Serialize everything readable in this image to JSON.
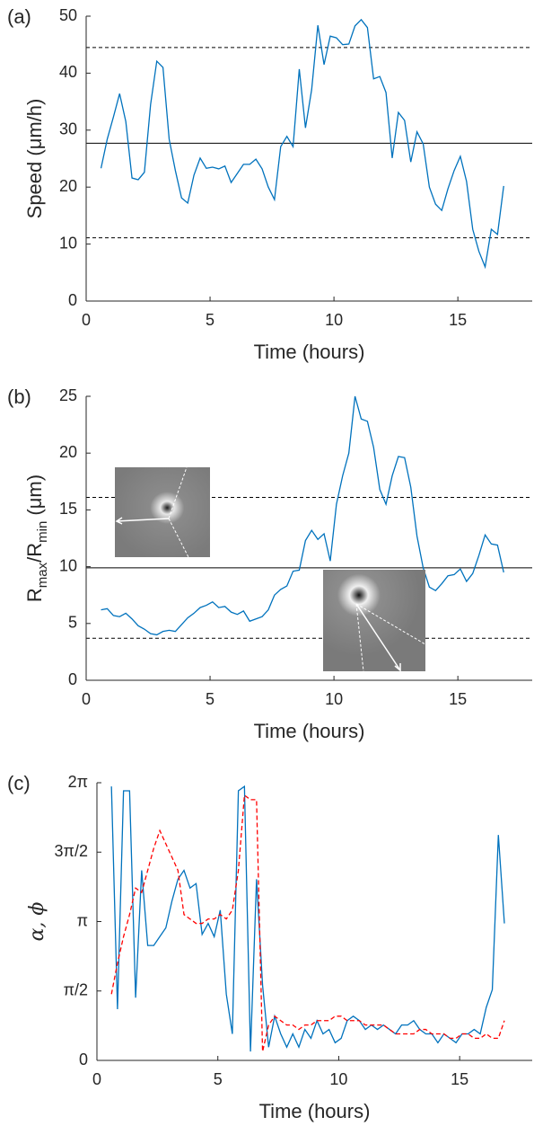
{
  "chart_data": [
    {
      "type": "line",
      "panel_label": "(a)",
      "xlabel": "Time (hours)",
      "ylabel": [
        {
          "text": "Speed (μm/h)"
        }
      ],
      "xlim": [
        0,
        18
      ],
      "xticks": [
        0,
        5,
        10,
        15
      ],
      "ylim": [
        0,
        50
      ],
      "yticks": [
        0,
        10,
        20,
        30,
        40,
        50
      ],
      "hlines": [
        {
          "value": 44.5,
          "style": "dashed"
        },
        {
          "value": 27.7,
          "style": "solid"
        },
        {
          "value": 11.1,
          "style": "dashed"
        }
      ],
      "x": [
        0.6,
        0.85,
        1.1,
        1.35,
        1.6,
        1.85,
        2.1,
        2.35,
        2.6,
        2.85,
        3.1,
        3.35,
        3.6,
        3.85,
        4.1,
        4.35,
        4.6,
        4.85,
        5.1,
        5.35,
        5.6,
        5.85,
        6.1,
        6.35,
        6.6,
        6.85,
        7.1,
        7.35,
        7.6,
        7.85,
        8.1,
        8.35,
        8.6,
        8.85,
        9.1,
        9.35,
        9.6,
        9.85,
        10.1,
        10.35,
        10.6,
        10.85,
        11.1,
        11.35,
        11.6,
        11.85,
        12.1,
        12.35,
        12.6,
        12.85,
        13.1,
        13.35,
        13.6,
        13.85,
        14.1,
        14.35,
        14.6,
        14.85,
        15.1,
        15.35,
        15.6,
        15.85,
        16.1,
        16.35,
        16.6,
        16.85
      ],
      "series": [
        {
          "color": "#0072bd",
          "dash": false,
          "values": [
            23.3,
            28.4,
            32.3,
            36.4,
            31.5,
            21.6,
            21.3,
            22.6,
            34.5,
            42.1,
            41.0,
            28.4,
            22.9,
            18.1,
            17.2,
            22.1,
            25.1,
            23.3,
            23.5,
            23.2,
            23.7,
            20.8,
            22.4,
            24.0,
            24.0,
            24.9,
            23.2,
            20.0,
            17.8,
            27.1,
            28.9,
            27.1,
            40.7,
            30.4,
            37.1,
            48.4,
            41.5,
            46.5,
            46.2,
            45.0,
            45.1,
            48.3,
            49.4,
            48.0,
            39.0,
            39.4,
            36.6,
            25.1,
            33.1,
            31.7,
            24.4,
            29.7,
            27.6,
            20.0,
            17.0,
            15.9,
            19.7,
            22.9,
            25.4,
            21.0,
            12.6,
            8.7,
            6.0,
            12.6,
            11.7,
            20.2
          ]
        }
      ]
    },
    {
      "type": "line",
      "panel_label": "(b)",
      "xlabel": "Time (hours)",
      "ylabel": [
        {
          "text": "R"
        },
        {
          "text": "max",
          "sub": true
        },
        {
          "text": "/R"
        },
        {
          "text": "min",
          "sub": true
        },
        {
          "text": " (μm)"
        }
      ],
      "xlim": [
        0,
        18
      ],
      "xticks": [
        0,
        5,
        10,
        15
      ],
      "ylim": [
        0,
        25
      ],
      "yticks": [
        0,
        5,
        10,
        15,
        20,
        25
      ],
      "hlines": [
        {
          "value": 16.1,
          "style": "dashed"
        },
        {
          "value": 9.9,
          "style": "solid"
        },
        {
          "value": 3.7,
          "style": "dashed"
        }
      ],
      "x": [
        0.6,
        0.85,
        1.1,
        1.35,
        1.6,
        1.85,
        2.1,
        2.35,
        2.6,
        2.85,
        3.1,
        3.35,
        3.6,
        3.85,
        4.1,
        4.35,
        4.6,
        4.85,
        5.1,
        5.35,
        5.6,
        5.85,
        6.1,
        6.35,
        6.6,
        6.85,
        7.1,
        7.35,
        7.6,
        7.85,
        8.1,
        8.35,
        8.6,
        8.85,
        9.1,
        9.35,
        9.6,
        9.85,
        10.1,
        10.35,
        10.6,
        10.85,
        11.1,
        11.35,
        11.6,
        11.85,
        12.1,
        12.35,
        12.6,
        12.85,
        13.1,
        13.35,
        13.6,
        13.85,
        14.1,
        14.35,
        14.6,
        14.85,
        15.1,
        15.35,
        15.6,
        15.85,
        16.1,
        16.35,
        16.6,
        16.85
      ],
      "series": [
        {
          "color": "#0072bd",
          "dash": false,
          "values": [
            6.2,
            6.3,
            5.7,
            5.6,
            5.9,
            5.4,
            4.8,
            4.5,
            4.1,
            4.0,
            4.3,
            4.4,
            4.3,
            4.9,
            5.5,
            5.9,
            6.4,
            6.6,
            6.9,
            6.4,
            6.5,
            6.0,
            5.8,
            6.1,
            5.2,
            5.4,
            5.6,
            6.2,
            7.5,
            8.0,
            8.3,
            9.6,
            9.7,
            12.3,
            13.2,
            12.4,
            12.9,
            10.5,
            15.5,
            18.0,
            20.0,
            25.0,
            23.0,
            22.8,
            20.5,
            16.8,
            15.5,
            18.0,
            19.7,
            19.6,
            17.0,
            12.7,
            9.9,
            8.2,
            7.9,
            8.5,
            9.2,
            9.3,
            9.8,
            8.7,
            9.4,
            11.0,
            12.8,
            12.0,
            11.9,
            9.5
          ]
        }
      ]
    },
    {
      "type": "line",
      "panel_label": "(c)",
      "xlabel": "Time (hours)",
      "ylabel": [
        {
          "text": "α, ϕ",
          "italic": true
        }
      ],
      "xlim": [
        0,
        18
      ],
      "xticks": [
        0,
        5,
        10,
        15
      ],
      "ylim": [
        0,
        6.2832
      ],
      "yticks": [
        0,
        {
          "value": 1.5708,
          "label": "π/2"
        },
        {
          "value": 3.1416,
          "label": "π"
        },
        {
          "value": 4.7124,
          "label": "3π/2"
        },
        {
          "value": 6.2832,
          "label": "2π"
        }
      ],
      "x": [
        0.6,
        0.85,
        1.1,
        1.35,
        1.6,
        1.85,
        2.1,
        2.35,
        2.6,
        2.85,
        3.1,
        3.35,
        3.6,
        3.85,
        4.1,
        4.35,
        4.6,
        4.85,
        5.1,
        5.35,
        5.6,
        5.85,
        6.1,
        6.35,
        6.6,
        6.85,
        7.1,
        7.35,
        7.6,
        7.85,
        8.1,
        8.35,
        8.6,
        8.85,
        9.1,
        9.35,
        9.6,
        9.85,
        10.1,
        10.35,
        10.6,
        10.85,
        11.1,
        11.35,
        11.6,
        11.85,
        12.1,
        12.35,
        12.6,
        12.85,
        13.1,
        13.35,
        13.6,
        13.85,
        14.1,
        14.35,
        14.6,
        14.85,
        15.1,
        15.35,
        15.6,
        15.85,
        16.1,
        16.35,
        16.6,
        16.85
      ],
      "series": [
        {
          "color": "#0072bd",
          "dash": false,
          "values": [
            6.2,
            1.16,
            6.1,
            6.1,
            1.42,
            4.3,
            2.6,
            2.6,
            2.8,
            3.0,
            3.6,
            4.1,
            4.3,
            3.9,
            4.0,
            2.85,
            3.1,
            2.8,
            3.4,
            1.5,
            0.6,
            6.1,
            6.2,
            0.2,
            4.1,
            1.7,
            0.3,
            1.0,
            0.6,
            0.3,
            0.6,
            0.3,
            0.7,
            0.5,
            0.9,
            0.6,
            0.7,
            0.4,
            0.5,
            0.9,
            1.0,
            0.9,
            0.7,
            0.8,
            0.7,
            0.8,
            0.7,
            0.6,
            0.8,
            0.8,
            0.9,
            0.7,
            0.6,
            0.6,
            0.4,
            0.6,
            0.5,
            0.4,
            0.6,
            0.6,
            0.7,
            0.6,
            1.2,
            1.6,
            5.1,
            3.1
          ]
        },
        {
          "color": "#ff0000",
          "dash": true,
          "values": [
            1.5,
            2.2,
            2.8,
            3.3,
            3.9,
            3.8,
            4.3,
            4.8,
            5.2,
            4.9,
            4.6,
            4.3,
            3.3,
            3.2,
            3.1,
            3.1,
            3.2,
            3.2,
            3.3,
            3.2,
            3.4,
            4.3,
            6.0,
            5.9,
            5.9,
            0.2,
            0.8,
            1.0,
            0.9,
            0.8,
            0.8,
            0.7,
            0.8,
            0.8,
            0.9,
            0.9,
            0.9,
            1.0,
            1.0,
            0.9,
            0.9,
            0.9,
            0.8,
            0.8,
            0.8,
            0.8,
            0.7,
            0.6,
            0.6,
            0.6,
            0.6,
            0.7,
            0.7,
            0.6,
            0.6,
            0.6,
            0.5,
            0.5,
            0.6,
            0.6,
            0.5,
            0.5,
            0.6,
            0.5,
            0.5,
            0.9
          ]
        }
      ]
    }
  ]
}
